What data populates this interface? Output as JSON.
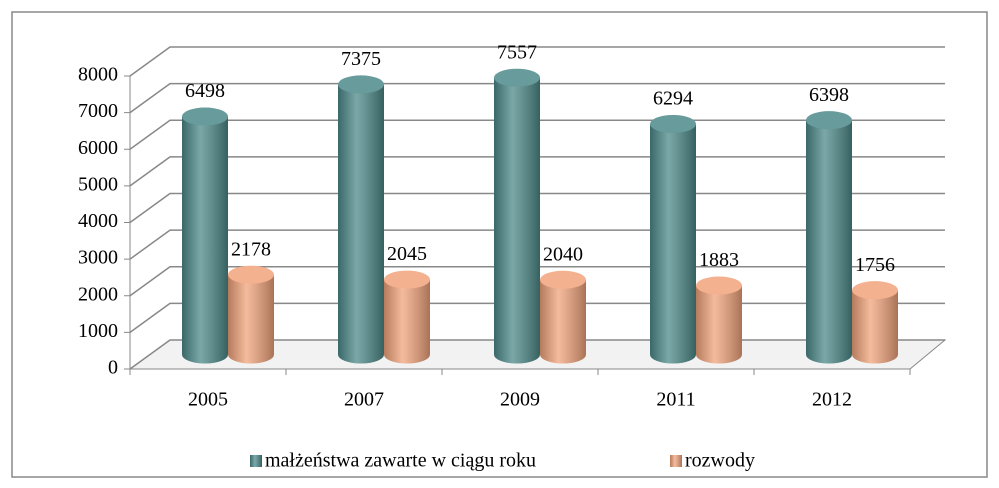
{
  "chart_data": {
    "type": "bar3d",
    "categories": [
      "2005",
      "2007",
      "2009",
      "2011",
      "2012"
    ],
    "series": [
      {
        "name": "małżeństwa zawarte w ciągu roku",
        "color": "#4e8a8a",
        "values": [
          6498,
          7375,
          7557,
          6294,
          6398
        ]
      },
      {
        "name": "rozwody",
        "color": "#f2a47c",
        "values": [
          2178,
          2045,
          2040,
          1883,
          1756
        ]
      }
    ],
    "ylim": [
      0,
      8000
    ],
    "yticks": [
      0,
      1000,
      2000,
      3000,
      4000,
      5000,
      6000,
      7000,
      8000
    ],
    "grid": true,
    "legend": "bottom"
  }
}
